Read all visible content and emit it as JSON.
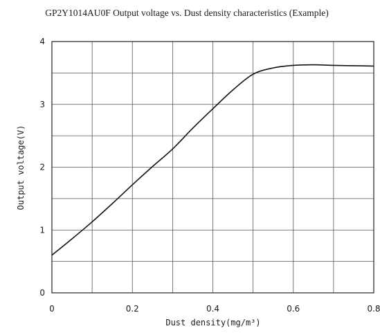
{
  "chart_data": {
    "type": "line",
    "title": "GP2Y1014AU0F Output voltage vs. Dust density characteristics (Example)",
    "xlabel": "Dust density(mg/m³)",
    "ylabel": "Output voltage(V)",
    "xlim": [
      0,
      0.8
    ],
    "ylim": [
      0,
      4
    ],
    "x_ticks": [
      "0",
      "0.2",
      "0.4",
      "0.6",
      "0.8"
    ],
    "y_ticks": [
      "0",
      "1",
      "2",
      "3",
      "4"
    ],
    "grid": true,
    "series": [
      {
        "x": [
          0,
          0.05,
          0.1,
          0.15,
          0.2,
          0.25,
          0.3,
          0.35,
          0.4,
          0.45,
          0.5,
          0.55,
          0.6,
          0.65,
          0.7,
          0.75,
          0.8
        ],
        "y": [
          0.6,
          0.86,
          1.13,
          1.42,
          1.72,
          2.01,
          2.29,
          2.62,
          2.93,
          3.23,
          3.48,
          3.58,
          3.62,
          3.63,
          3.62,
          3.615,
          3.61
        ]
      }
    ]
  }
}
